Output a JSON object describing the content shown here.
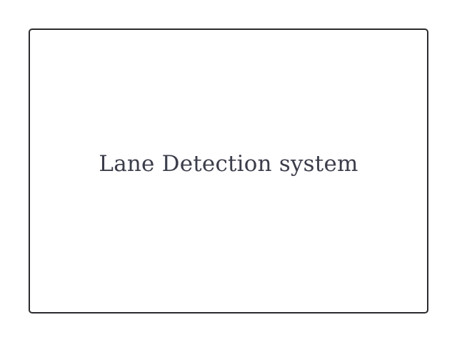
{
  "diagram": {
    "block": {
      "label": "Lane Detection system"
    }
  },
  "colors": {
    "border": "#2b2b2f",
    "text": "#3b3d4a",
    "background": "#ffffff"
  }
}
